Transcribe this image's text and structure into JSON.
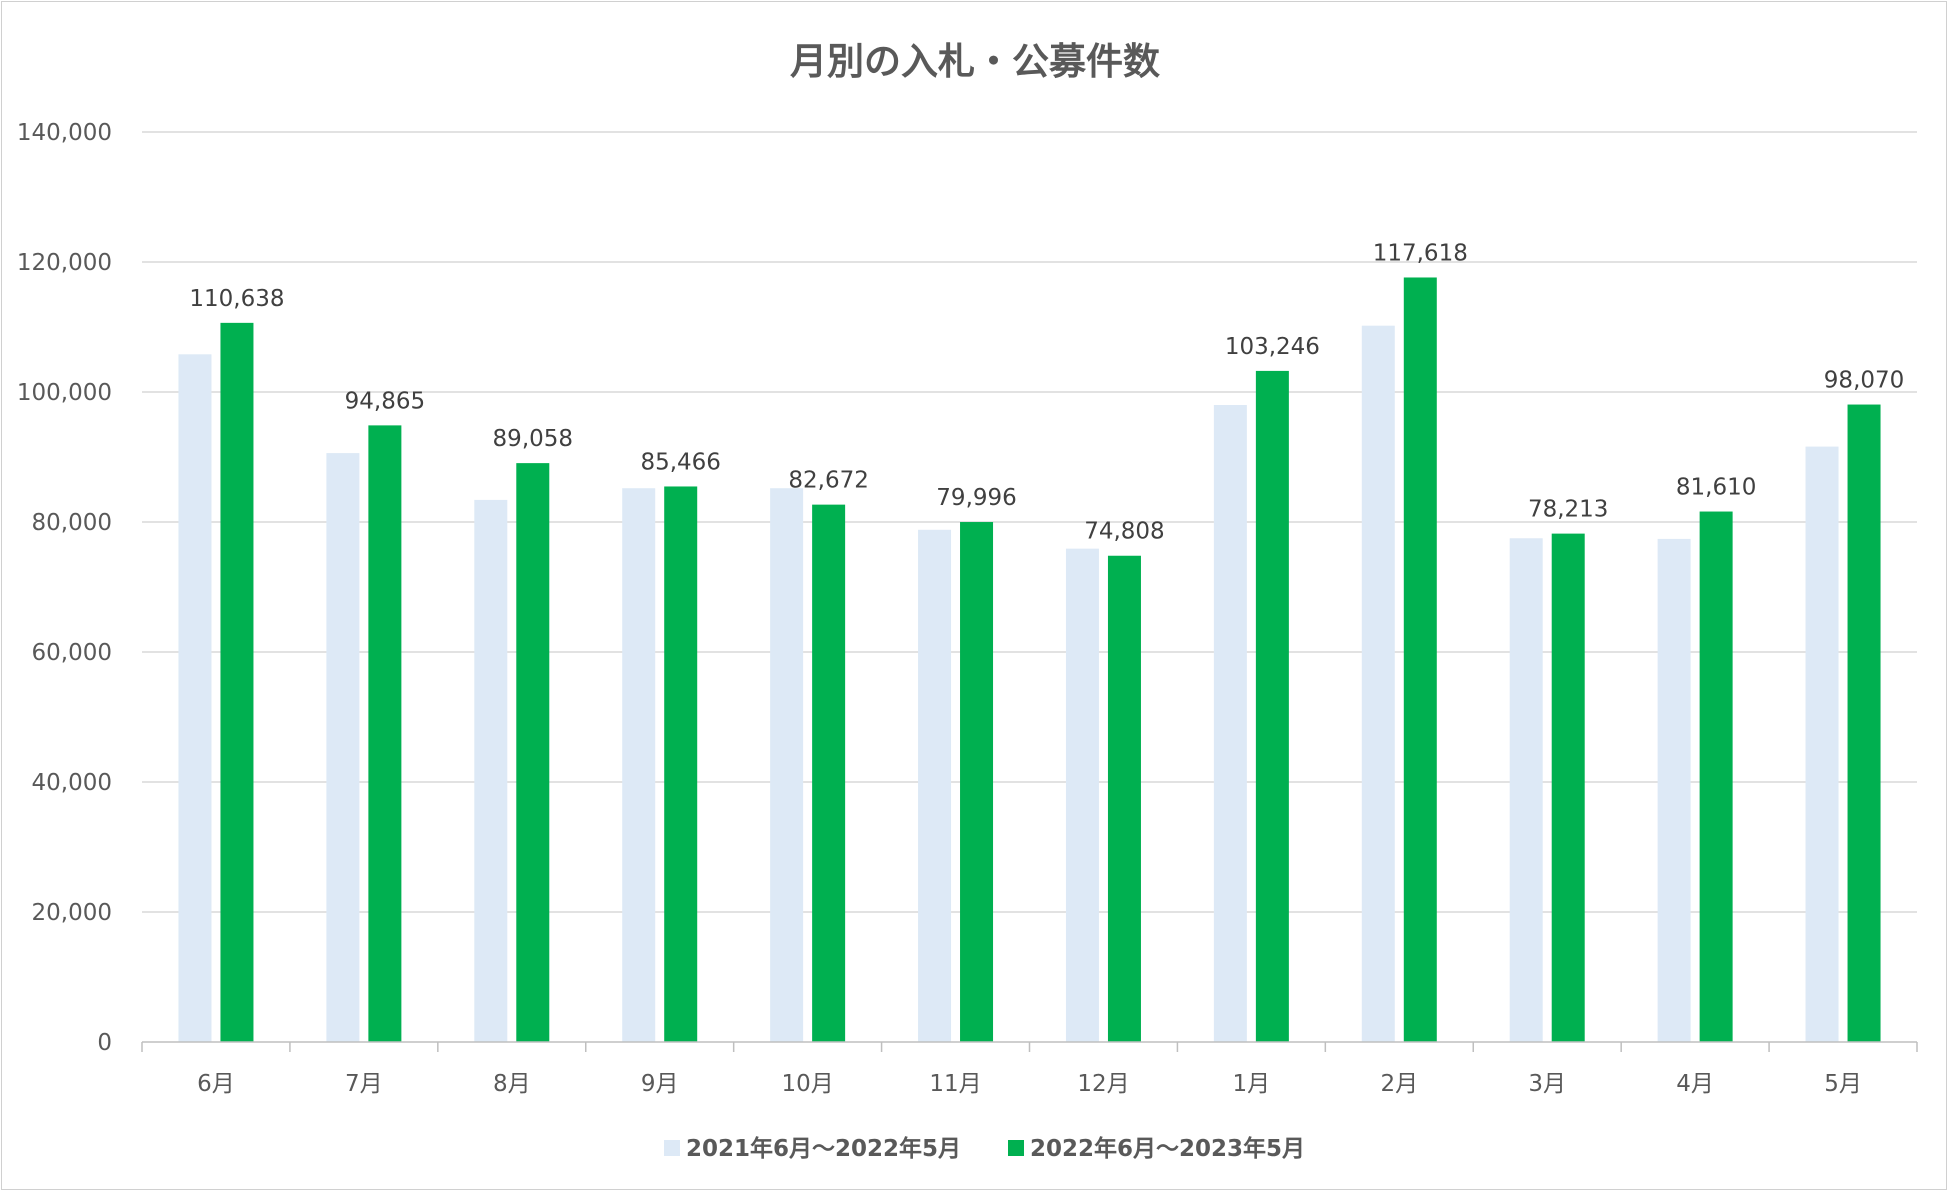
{
  "chart_data": {
    "type": "bar",
    "title": "月別の入札・公募件数",
    "xlabel": "",
    "ylabel": "",
    "ylim": [
      0,
      140000
    ],
    "yticks": [
      0,
      20000,
      40000,
      60000,
      80000,
      100000,
      120000,
      140000
    ],
    "ytick_labels": [
      "0",
      "20,000",
      "40,000",
      "60,000",
      "80,000",
      "100,000",
      "120,000",
      "140,000"
    ],
    "categories": [
      "6月",
      "7月",
      "8月",
      "9月",
      "10月",
      "11月",
      "12月",
      "1月",
      "2月",
      "3月",
      "4月",
      "5月"
    ],
    "grid": true,
    "legend": "bottom",
    "series": [
      {
        "name": "2021年6月～2022年5月",
        "color": "#dde9f6",
        "values": [
          105800,
          90600,
          83400,
          85200,
          85200,
          78800,
          75900,
          98000,
          110200,
          77500,
          77400,
          91600
        ],
        "labels": []
      },
      {
        "name": "2022年6月～2023年5月",
        "color": "#00b050",
        "values": [
          110638,
          94865,
          89058,
          85466,
          82672,
          79996,
          74808,
          103246,
          117618,
          78213,
          81610,
          98070
        ],
        "labels": [
          "110,638",
          "94,865",
          "89,058",
          "85,466",
          "82,672",
          "79,996",
          "74,808",
          "103,246",
          "117,618",
          "78,213",
          "81,610",
          "98,070"
        ]
      }
    ]
  }
}
